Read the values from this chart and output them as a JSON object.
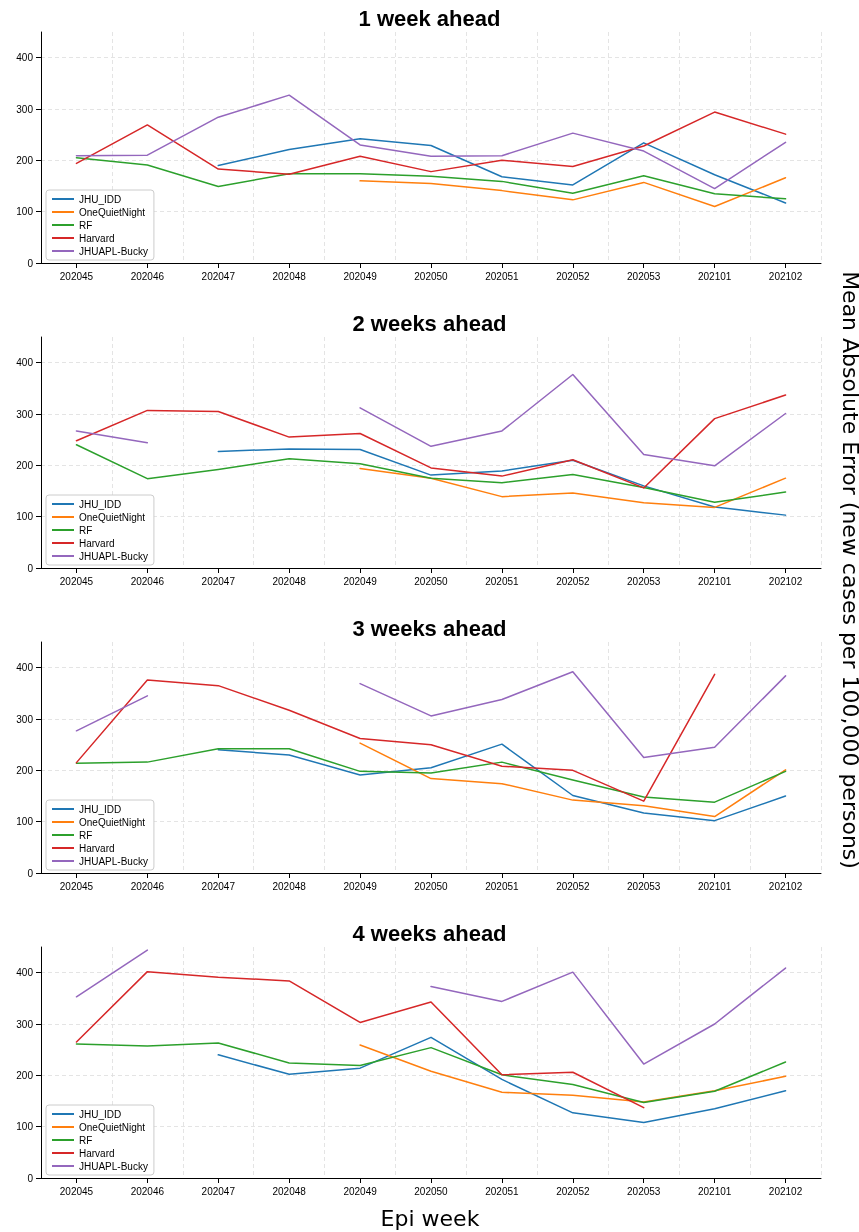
{
  "chart_data": [
    {
      "type": "line",
      "title": "1 week ahead",
      "ylabel": "Mean Absolute Error (new cases per 100,000 persons)",
      "categories": [
        "202045",
        "202046",
        "202047",
        "202048",
        "202049",
        "202050",
        "202051",
        "202052",
        "202053",
        "202101",
        "202102"
      ],
      "ylim": [
        0,
        450
      ],
      "yticks": [
        0,
        100,
        200,
        300,
        400
      ],
      "grid": true,
      "legend": "bottom left",
      "marker": "none",
      "line_style": "solid",
      "series": [
        {
          "name": "JHU_IDD",
          "color": "#1f77b4",
          "values": [
            null,
            null,
            190,
            221,
            242,
            229,
            168,
            152,
            234,
            172,
            117
          ]
        },
        {
          "name": "OneQuietNight",
          "color": "#ff7f0e",
          "values": [
            null,
            null,
            null,
            null,
            160,
            155,
            141,
            123,
            157,
            110,
            166
          ]
        },
        {
          "name": "RF",
          "color": "#2ca02c",
          "values": [
            205,
            191,
            149,
            174,
            174,
            169,
            159,
            136,
            170,
            135,
            125
          ]
        },
        {
          "name": "Harvard",
          "color": "#d62728",
          "values": [
            194,
            269,
            183,
            173,
            208,
            178,
            200,
            188,
            228,
            294,
            251
          ]
        },
        {
          "name": "JHUAPL-Bucky",
          "color": "#9467bd",
          "values": [
            209,
            210,
            284,
            327,
            230,
            208,
            209,
            253,
            218,
            145,
            235
          ]
        }
      ]
    },
    {
      "type": "line",
      "title": "2 weeks ahead",
      "categories": [
        "202045",
        "202046",
        "202047",
        "202048",
        "202049",
        "202050",
        "202051",
        "202052",
        "202053",
        "202101",
        "202102"
      ],
      "ylim": [
        0,
        450
      ],
      "yticks": [
        0,
        100,
        200,
        300,
        400
      ],
      "grid": true,
      "legend": "bottom left",
      "marker": "none",
      "line_style": "solid",
      "series": [
        {
          "name": "JHU_IDD",
          "color": "#1f77b4",
          "values": [
            null,
            null,
            227,
            232,
            231,
            181,
            189,
            210,
            160,
            119,
            103
          ]
        },
        {
          "name": "OneQuietNight",
          "color": "#ff7f0e",
          "values": [
            null,
            null,
            null,
            null,
            194,
            175,
            139,
            146,
            127,
            118,
            175
          ]
        },
        {
          "name": "RF",
          "color": "#2ca02c",
          "values": [
            240,
            174,
            192,
            213,
            203,
            175,
            166,
            182,
            157,
            128,
            148
          ]
        },
        {
          "name": "Harvard",
          "color": "#d62728",
          "values": [
            248,
            307,
            305,
            255,
            262,
            195,
            179,
            211,
            156,
            291,
            337
          ]
        },
        {
          "name": "JHUAPL-Bucky",
          "color": "#9467bd",
          "values": [
            267,
            244,
            null,
            null,
            312,
            237,
            267,
            377,
            221,
            199,
            301
          ]
        }
      ]
    },
    {
      "type": "line",
      "title": "3 weeks ahead",
      "categories": [
        "202045",
        "202046",
        "202047",
        "202048",
        "202049",
        "202050",
        "202051",
        "202052",
        "202053",
        "202101",
        "202102"
      ],
      "ylim": [
        0,
        450
      ],
      "yticks": [
        0,
        100,
        200,
        300,
        400
      ],
      "grid": true,
      "legend": "bottom left",
      "marker": "none",
      "line_style": "solid",
      "series": [
        {
          "name": "JHU_IDD",
          "color": "#1f77b4",
          "values": [
            null,
            null,
            240,
            230,
            191,
            205,
            251,
            151,
            117,
            102,
            150
          ]
        },
        {
          "name": "OneQuietNight",
          "color": "#ff7f0e",
          "values": [
            null,
            null,
            null,
            null,
            253,
            184,
            174,
            142,
            131,
            110,
            201
          ]
        },
        {
          "name": "RF",
          "color": "#2ca02c",
          "values": [
            214,
            216,
            242,
            242,
            198,
            195,
            216,
            181,
            148,
            138,
            198
          ]
        },
        {
          "name": "Harvard",
          "color": "#d62728",
          "values": [
            215,
            376,
            365,
            317,
            262,
            250,
            208,
            200,
            140,
            387,
            null
          ]
        },
        {
          "name": "JHUAPL-Bucky",
          "color": "#9467bd",
          "values": [
            277,
            345,
            null,
            null,
            369,
            306,
            338,
            392,
            225,
            245,
            384
          ]
        }
      ]
    },
    {
      "type": "line",
      "title": "4 weeks ahead",
      "xlabel": "Epi week",
      "categories": [
        "202045",
        "202046",
        "202047",
        "202048",
        "202049",
        "202050",
        "202051",
        "202052",
        "202053",
        "202101",
        "202102"
      ],
      "ylim": [
        0,
        450
      ],
      "yticks": [
        0,
        100,
        200,
        300,
        400
      ],
      "grid": true,
      "legend": "bottom left",
      "marker": "none",
      "line_style": "solid",
      "series": [
        {
          "name": "JHU_IDD",
          "color": "#1f77b4",
          "values": [
            null,
            null,
            240,
            202,
            214,
            274,
            192,
            127,
            108,
            135,
            170
          ]
        },
        {
          "name": "OneQuietNight",
          "color": "#ff7f0e",
          "values": [
            null,
            null,
            null,
            null,
            259,
            208,
            167,
            161,
            148,
            170,
            198
          ]
        },
        {
          "name": "RF",
          "color": "#2ca02c",
          "values": [
            261,
            257,
            263,
            224,
            219,
            254,
            201,
            182,
            147,
            169,
            226
          ]
        },
        {
          "name": "Harvard",
          "color": "#d62728",
          "values": [
            265,
            402,
            391,
            384,
            303,
            343,
            201,
            206,
            137,
            null,
            null
          ]
        },
        {
          "name": "JHUAPL-Bucky",
          "color": "#9467bd",
          "values": [
            353,
            444,
            null,
            null,
            null,
            373,
            344,
            401,
            222,
            300,
            409
          ]
        }
      ]
    }
  ]
}
